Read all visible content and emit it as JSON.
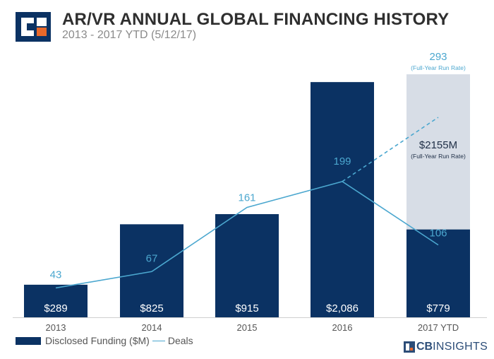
{
  "header": {
    "title": "AR/VR ANNUAL GLOBAL FINANCING HISTORY",
    "subtitle": "2013 - 2017 YTD (5/12/17)"
  },
  "colors": {
    "bar": "#0b3263",
    "projected_bar": "#d7dde6",
    "line": "#4ba7cf",
    "axis_text": "#555555",
    "logo_orange": "#e8692b"
  },
  "legend": {
    "funding_label": "Disclosed Funding ($M)",
    "deals_label": "Deals"
  },
  "brand": {
    "cb": "CB",
    "rest": "INSIGHTS"
  },
  "chart_data": {
    "type": "bar",
    "categories": [
      "2013",
      "2014",
      "2015",
      "2016",
      "2017 YTD"
    ],
    "series": [
      {
        "name": "Disclosed Funding ($M)",
        "type": "bar",
        "values": [
          289,
          825,
          915,
          2086,
          779
        ],
        "labels": [
          "$289",
          "$825",
          "$915",
          "$2,086",
          "$779"
        ]
      },
      {
        "name": "Deals",
        "type": "line",
        "values": [
          43,
          67,
          161,
          199,
          106
        ],
        "labels": [
          "43",
          "67",
          "161",
          "199",
          "106"
        ]
      }
    ],
    "projection": {
      "category": "2017 YTD",
      "funding_value": 2155,
      "funding_label": "$2155M",
      "funding_note": "(Full-Year Run Rate)",
      "deals_value": 293,
      "deals_label": "293",
      "deals_note": "(Full-Year Run Rate)"
    },
    "ylim_funding": [
      0,
      2300
    ],
    "ylim_deals": [
      0,
      380
    ]
  }
}
